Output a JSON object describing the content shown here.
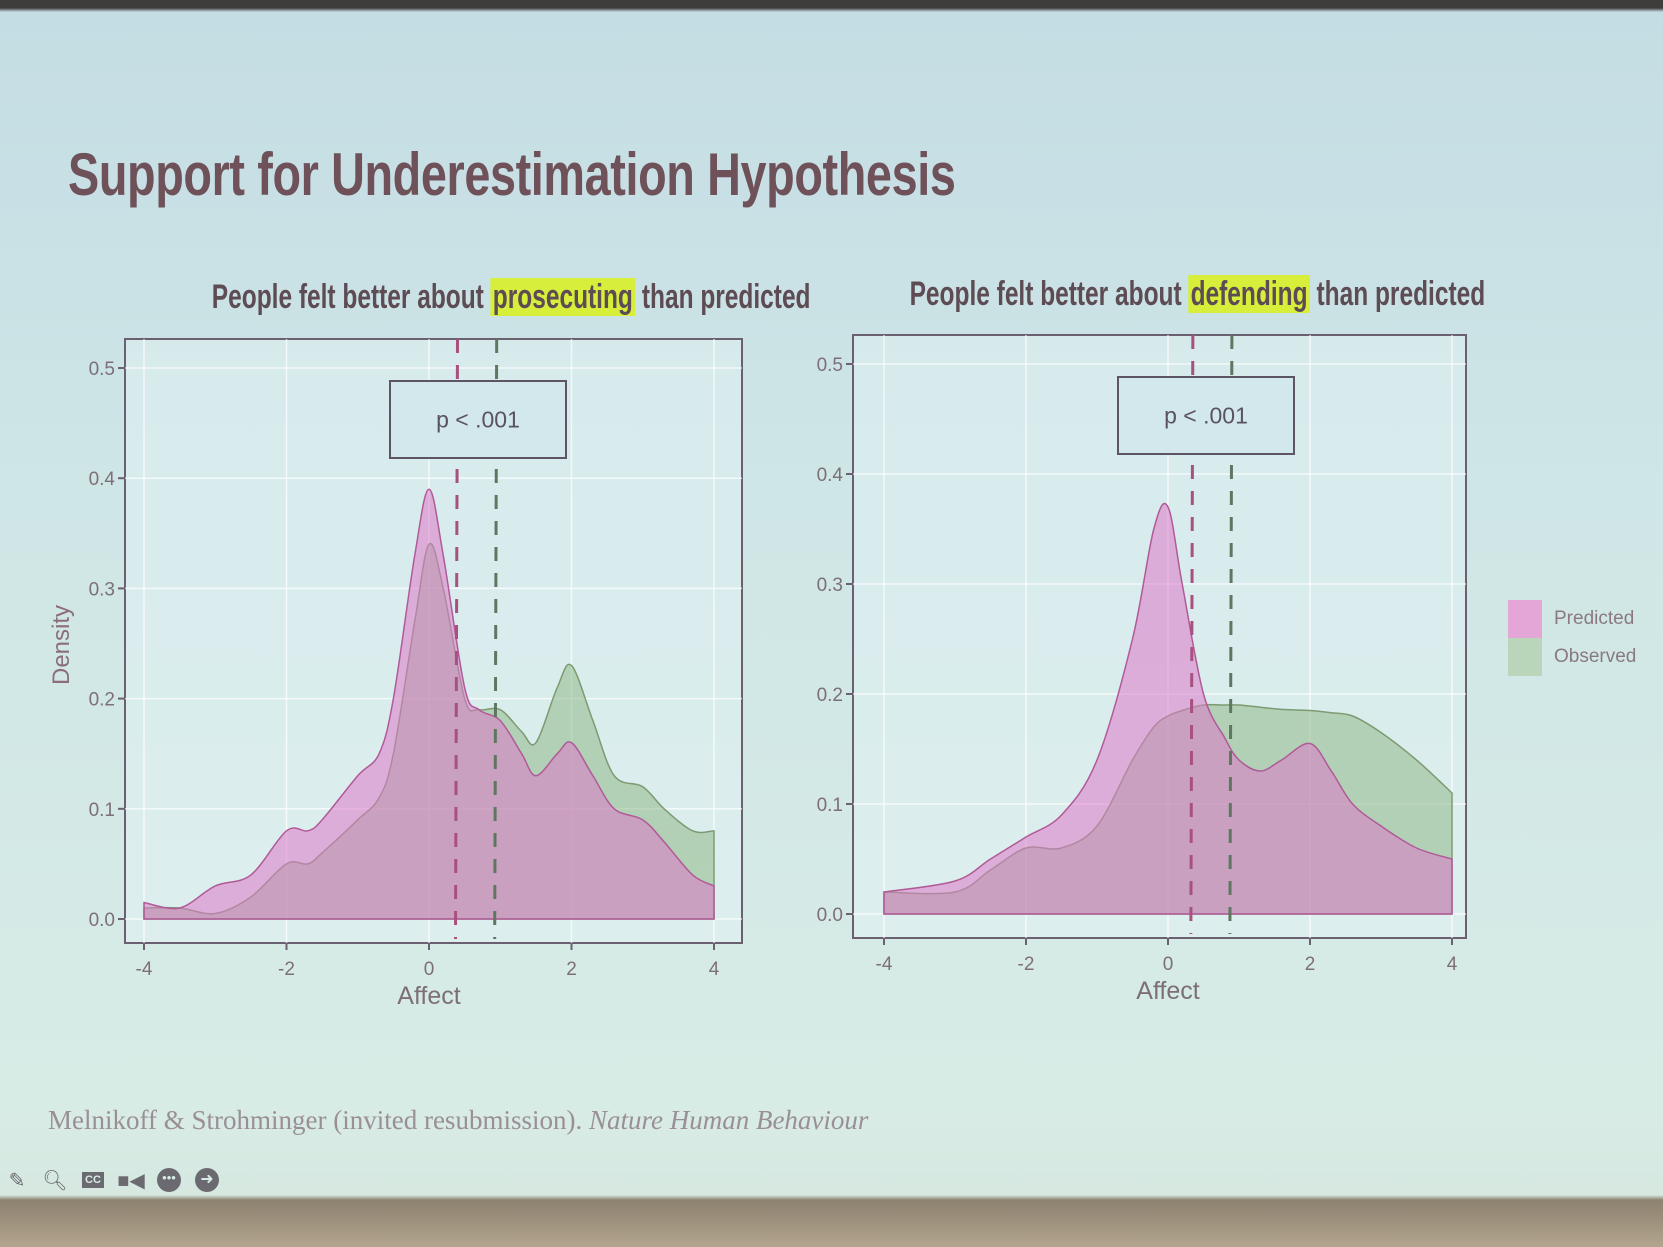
{
  "slide": {
    "title": "Support for Underestimation Hypothesis",
    "citation_authors": "Melnikoff & Strohminger (invited resubmission).",
    "citation_journal": "Nature Human Behaviour"
  },
  "subtitles": [
    {
      "pre": "People felt better about ",
      "highlight": "prosecuting",
      "post": " than predicted"
    },
    {
      "pre": "People felt better about ",
      "highlight": "defending",
      "post": " than predicted"
    }
  ],
  "colors": {
    "predicted": "#e08ccd",
    "observed": "#9ec6a0",
    "highlight": "#d7ef3a"
  },
  "legend": [
    {
      "label": "Predicted",
      "color": "#e08ccd"
    },
    {
      "label": "Observed",
      "color": "#9ec6a0"
    }
  ],
  "toolbar": [
    "pen-icon",
    "magnifier-icon",
    "captions-icon",
    "video-icon",
    "more-icon",
    "next-icon"
  ],
  "chart_data": [
    {
      "type": "area",
      "xlabel": "Affect",
      "ylabel": "Density",
      "xlim": [
        -4,
        4
      ],
      "ylim": [
        0,
        0.5
      ],
      "xticks": [
        "-4",
        "-2",
        "0",
        "2",
        "4"
      ],
      "yticks": [
        "0.0",
        "0.1",
        "0.2",
        "0.3",
        "0.4",
        "0.5"
      ],
      "grid": true,
      "annotation": "p < .001",
      "mean_lines": {
        "Predicted": 0.4,
        "Observed": 0.95
      },
      "x": [
        -4,
        -3.5,
        -3,
        -2.5,
        -2,
        -1.7,
        -1.5,
        -1,
        -0.7,
        -0.5,
        -0.2,
        0,
        0.2,
        0.5,
        0.7,
        1,
        1.3,
        1.5,
        1.8,
        2,
        2.3,
        2.6,
        3,
        3.3,
        3.7,
        4
      ],
      "series": [
        {
          "name": "Predicted",
          "values": [
            0.015,
            0.01,
            0.03,
            0.04,
            0.08,
            0.08,
            0.09,
            0.13,
            0.15,
            0.2,
            0.33,
            0.39,
            0.33,
            0.21,
            0.19,
            0.18,
            0.15,
            0.13,
            0.15,
            0.16,
            0.13,
            0.1,
            0.09,
            0.07,
            0.04,
            0.03
          ]
        },
        {
          "name": "Observed",
          "values": [
            0.01,
            0.01,
            0.005,
            0.02,
            0.05,
            0.05,
            0.06,
            0.09,
            0.11,
            0.15,
            0.27,
            0.34,
            0.3,
            0.2,
            0.19,
            0.19,
            0.17,
            0.16,
            0.21,
            0.23,
            0.18,
            0.13,
            0.12,
            0.1,
            0.08,
            0.08
          ]
        }
      ]
    },
    {
      "type": "area",
      "xlabel": "Affect",
      "ylabel": "",
      "xlim": [
        -4,
        4
      ],
      "ylim": [
        0,
        0.5
      ],
      "xticks": [
        "-4",
        "-2",
        "0",
        "2",
        "4"
      ],
      "yticks": [
        "0.0",
        "0.1",
        "0.2",
        "0.3",
        "0.4",
        "0.5"
      ],
      "grid": true,
      "annotation": "p < .001",
      "legend_position": "right",
      "mean_lines": {
        "Predicted": 0.35,
        "Observed": 0.9
      },
      "x": [
        -4,
        -3,
        -2.5,
        -2,
        -1.5,
        -1,
        -0.5,
        -0.2,
        0,
        0.2,
        0.5,
        0.8,
        1,
        1.3,
        1.6,
        2,
        2.3,
        2.6,
        3,
        3.5,
        4
      ],
      "series": [
        {
          "name": "Predicted",
          "values": [
            0.02,
            0.03,
            0.05,
            0.07,
            0.09,
            0.14,
            0.25,
            0.35,
            0.37,
            0.3,
            0.2,
            0.16,
            0.14,
            0.13,
            0.14,
            0.155,
            0.13,
            0.1,
            0.08,
            0.06,
            0.05
          ]
        },
        {
          "name": "Observed",
          "values": [
            0.02,
            0.02,
            0.04,
            0.06,
            0.06,
            0.08,
            0.14,
            0.17,
            0.18,
            0.185,
            0.19,
            0.19,
            0.19,
            0.188,
            0.186,
            0.185,
            0.183,
            0.18,
            0.165,
            0.14,
            0.11
          ]
        }
      ]
    }
  ]
}
